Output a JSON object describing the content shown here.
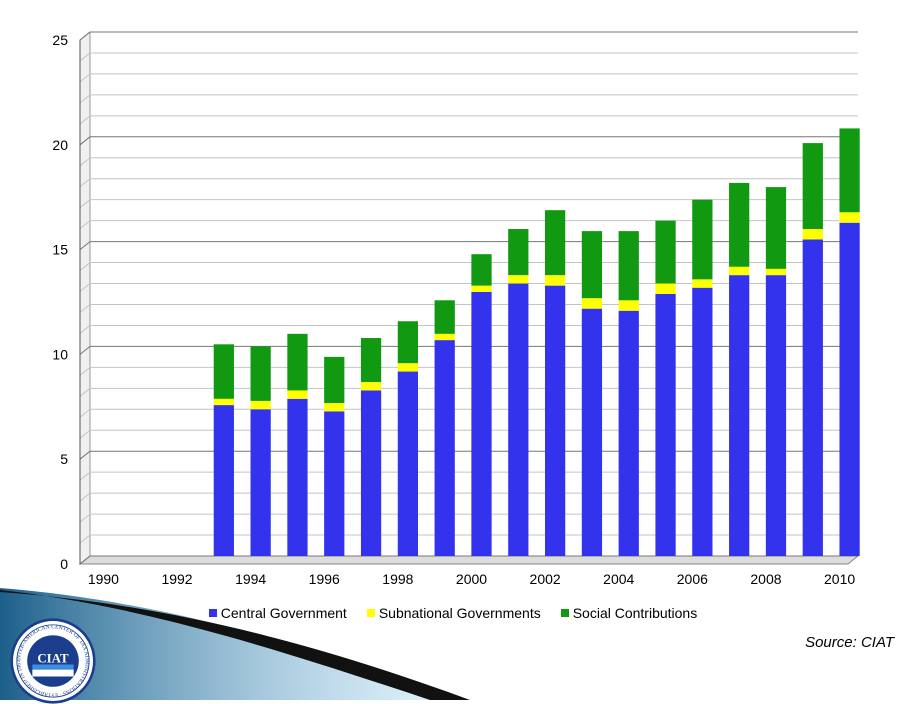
{
  "chart_data": {
    "type": "bar",
    "stacked": true,
    "categories": [
      "1990",
      "1991",
      "1992",
      "1993",
      "1994",
      "1995",
      "1996",
      "1997",
      "1998",
      "1999",
      "2000",
      "2001",
      "2002",
      "2003",
      "2004",
      "2005",
      "2006",
      "2007",
      "2008",
      "2009",
      "2010"
    ],
    "x_tick_labels": [
      "1990",
      "1992",
      "1994",
      "1996",
      "1998",
      "2000",
      "2002",
      "2004",
      "2006",
      "2008",
      "2010"
    ],
    "series": [
      {
        "name": "Central Government",
        "color": "#3333ee",
        "values": [
          0,
          0,
          0,
          7.2,
          7.0,
          7.5,
          6.9,
          7.9,
          8.8,
          10.3,
          12.6,
          13.0,
          12.9,
          11.8,
          11.7,
          12.5,
          12.8,
          13.4,
          13.4,
          15.1,
          15.9
        ]
      },
      {
        "name": "Subnational Governments",
        "color": "#ffff00",
        "values": [
          0,
          0,
          0,
          0.3,
          0.4,
          0.4,
          0.4,
          0.4,
          0.4,
          0.3,
          0.3,
          0.4,
          0.5,
          0.5,
          0.5,
          0.5,
          0.4,
          0.4,
          0.3,
          0.5,
          0.5
        ]
      },
      {
        "name": "Social Contributions",
        "color": "#119911",
        "values": [
          0,
          0,
          0,
          2.6,
          2.6,
          2.7,
          2.2,
          2.1,
          2.0,
          1.6,
          1.5,
          2.2,
          3.1,
          3.2,
          3.3,
          3.0,
          3.8,
          4.0,
          3.9,
          4.1,
          4.0
        ]
      }
    ],
    "y_ticks": [
      0,
      5,
      10,
      15,
      20,
      25
    ],
    "ylim": [
      0,
      25
    ],
    "minor_grid_step": 1,
    "title": "",
    "xlabel": "",
    "ylabel": "",
    "legend_position": "bottom"
  },
  "source_label": "Source: CIAT",
  "logo": {
    "center_text": "CIAT",
    "ring_text": "INTER-AMERICAN CENTER OF TAX ADMINISTRATIONS · ESTABLISHED IN 1967 ·"
  }
}
